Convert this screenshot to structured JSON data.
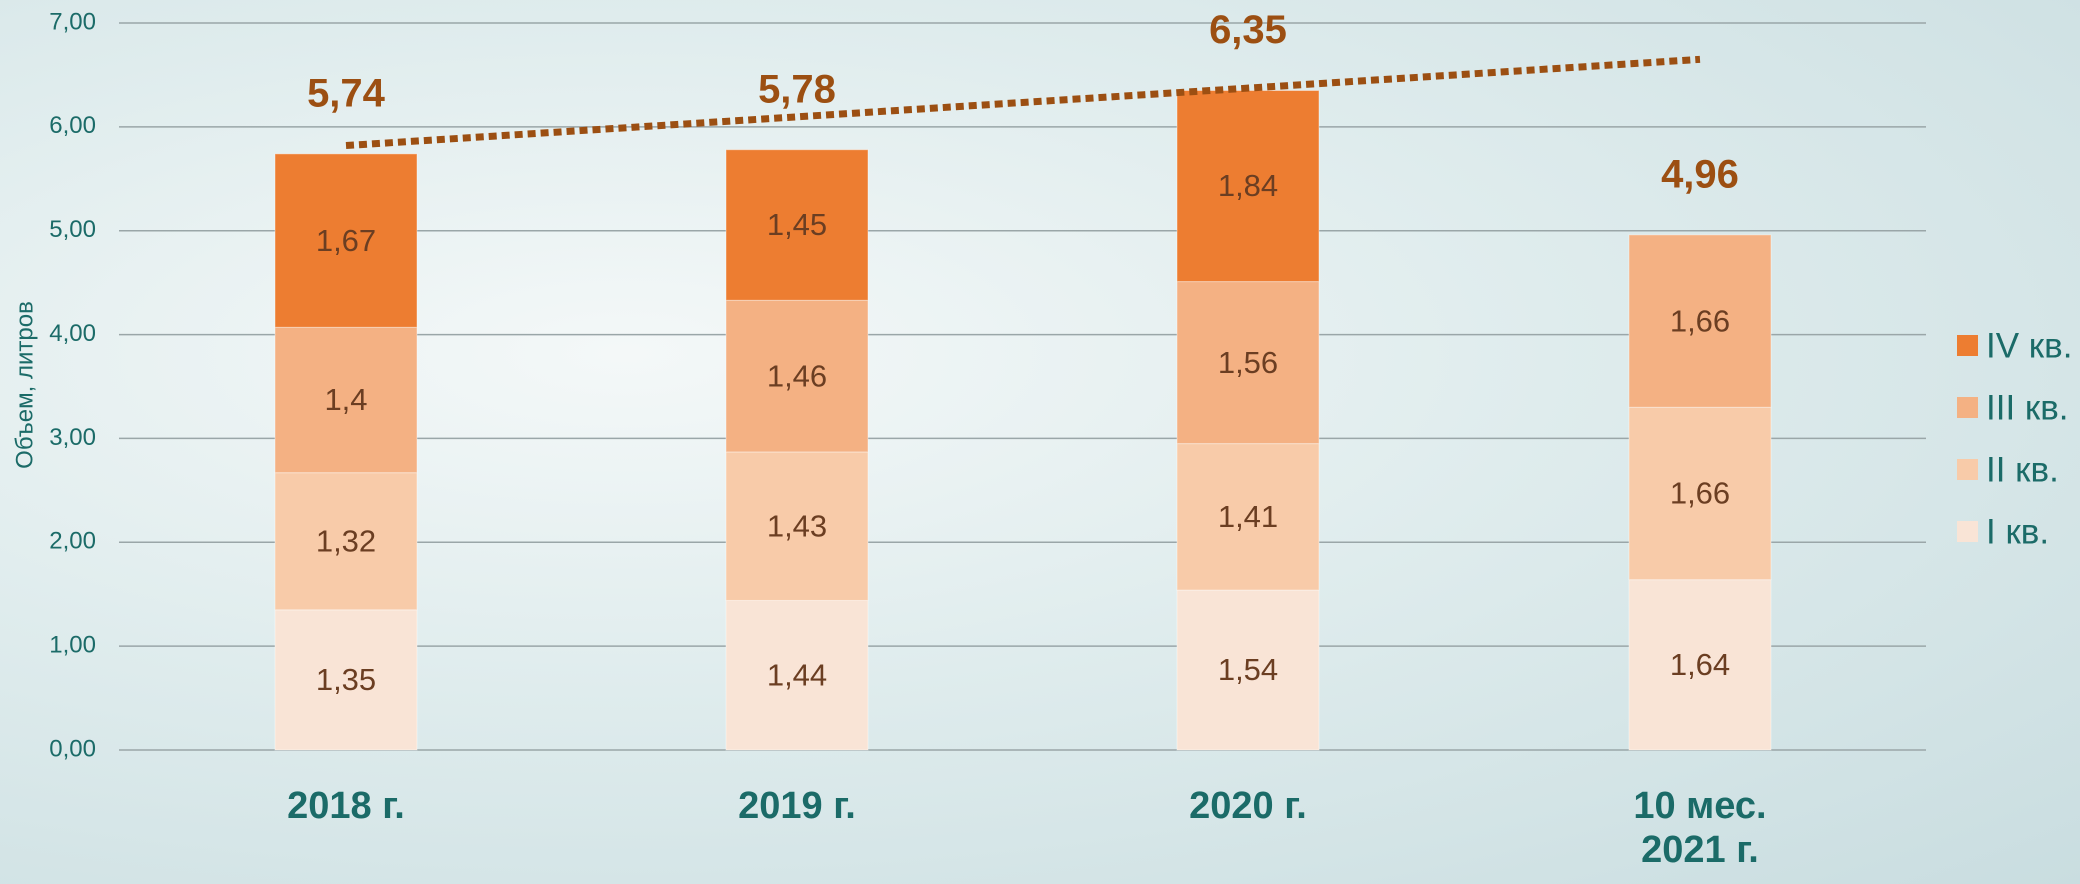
{
  "chart_data": {
    "type": "stacked_bar",
    "y_label": "Объем, литров",
    "categories": [
      "2018 г.",
      "2019 г.",
      "2020 г.",
      "10 мес. 2021 г."
    ],
    "series": [
      {
        "name": "I кв.",
        "color": "#f9e4d6",
        "values": [
          1.35,
          1.44,
          1.54,
          1.64
        ],
        "value_labels": [
          "1,35",
          "1,44",
          "1,54",
          "1,64"
        ]
      },
      {
        "name": "II кв.",
        "color": "#f8cba9",
        "values": [
          1.32,
          1.43,
          1.41,
          1.66
        ],
        "value_labels": [
          "1,32",
          "1,43",
          "1,41",
          "1,66"
        ]
      },
      {
        "name": "III кв.",
        "color": "#f4b183",
        "values": [
          1.4,
          1.46,
          1.56,
          1.66
        ],
        "value_labels": [
          "1,4",
          "1,46",
          "1,56",
          "1,66"
        ]
      },
      {
        "name": "IV кв.",
        "color": "#ed7d31",
        "values": [
          1.67,
          1.45,
          1.84,
          null
        ],
        "value_labels": [
          "1,67",
          "1,45",
          "1,84",
          null
        ]
      }
    ],
    "totals": {
      "values": [
        5.74,
        5.78,
        6.35,
        4.96
      ],
      "value_labels": [
        "5,74",
        "5,78",
        "6,35",
        "4,96"
      ],
      "color": "#9c4f12"
    },
    "trendline": {
      "start": 5.82,
      "end": 6.65,
      "color": "#9c4f12"
    },
    "ylim": [
      0,
      7
    ],
    "yticks": [
      {
        "value": 0,
        "label": "0,00"
      },
      {
        "value": 1,
        "label": "1,00"
      },
      {
        "value": 2,
        "label": "2,00"
      },
      {
        "value": 3,
        "label": "3,00"
      },
      {
        "value": 4,
        "label": "4,00"
      },
      {
        "value": 5,
        "label": "5,00"
      },
      {
        "value": 6,
        "label": "6,00"
      },
      {
        "value": 7,
        "label": "7,00"
      }
    ],
    "grid": true,
    "legend": "right"
  }
}
